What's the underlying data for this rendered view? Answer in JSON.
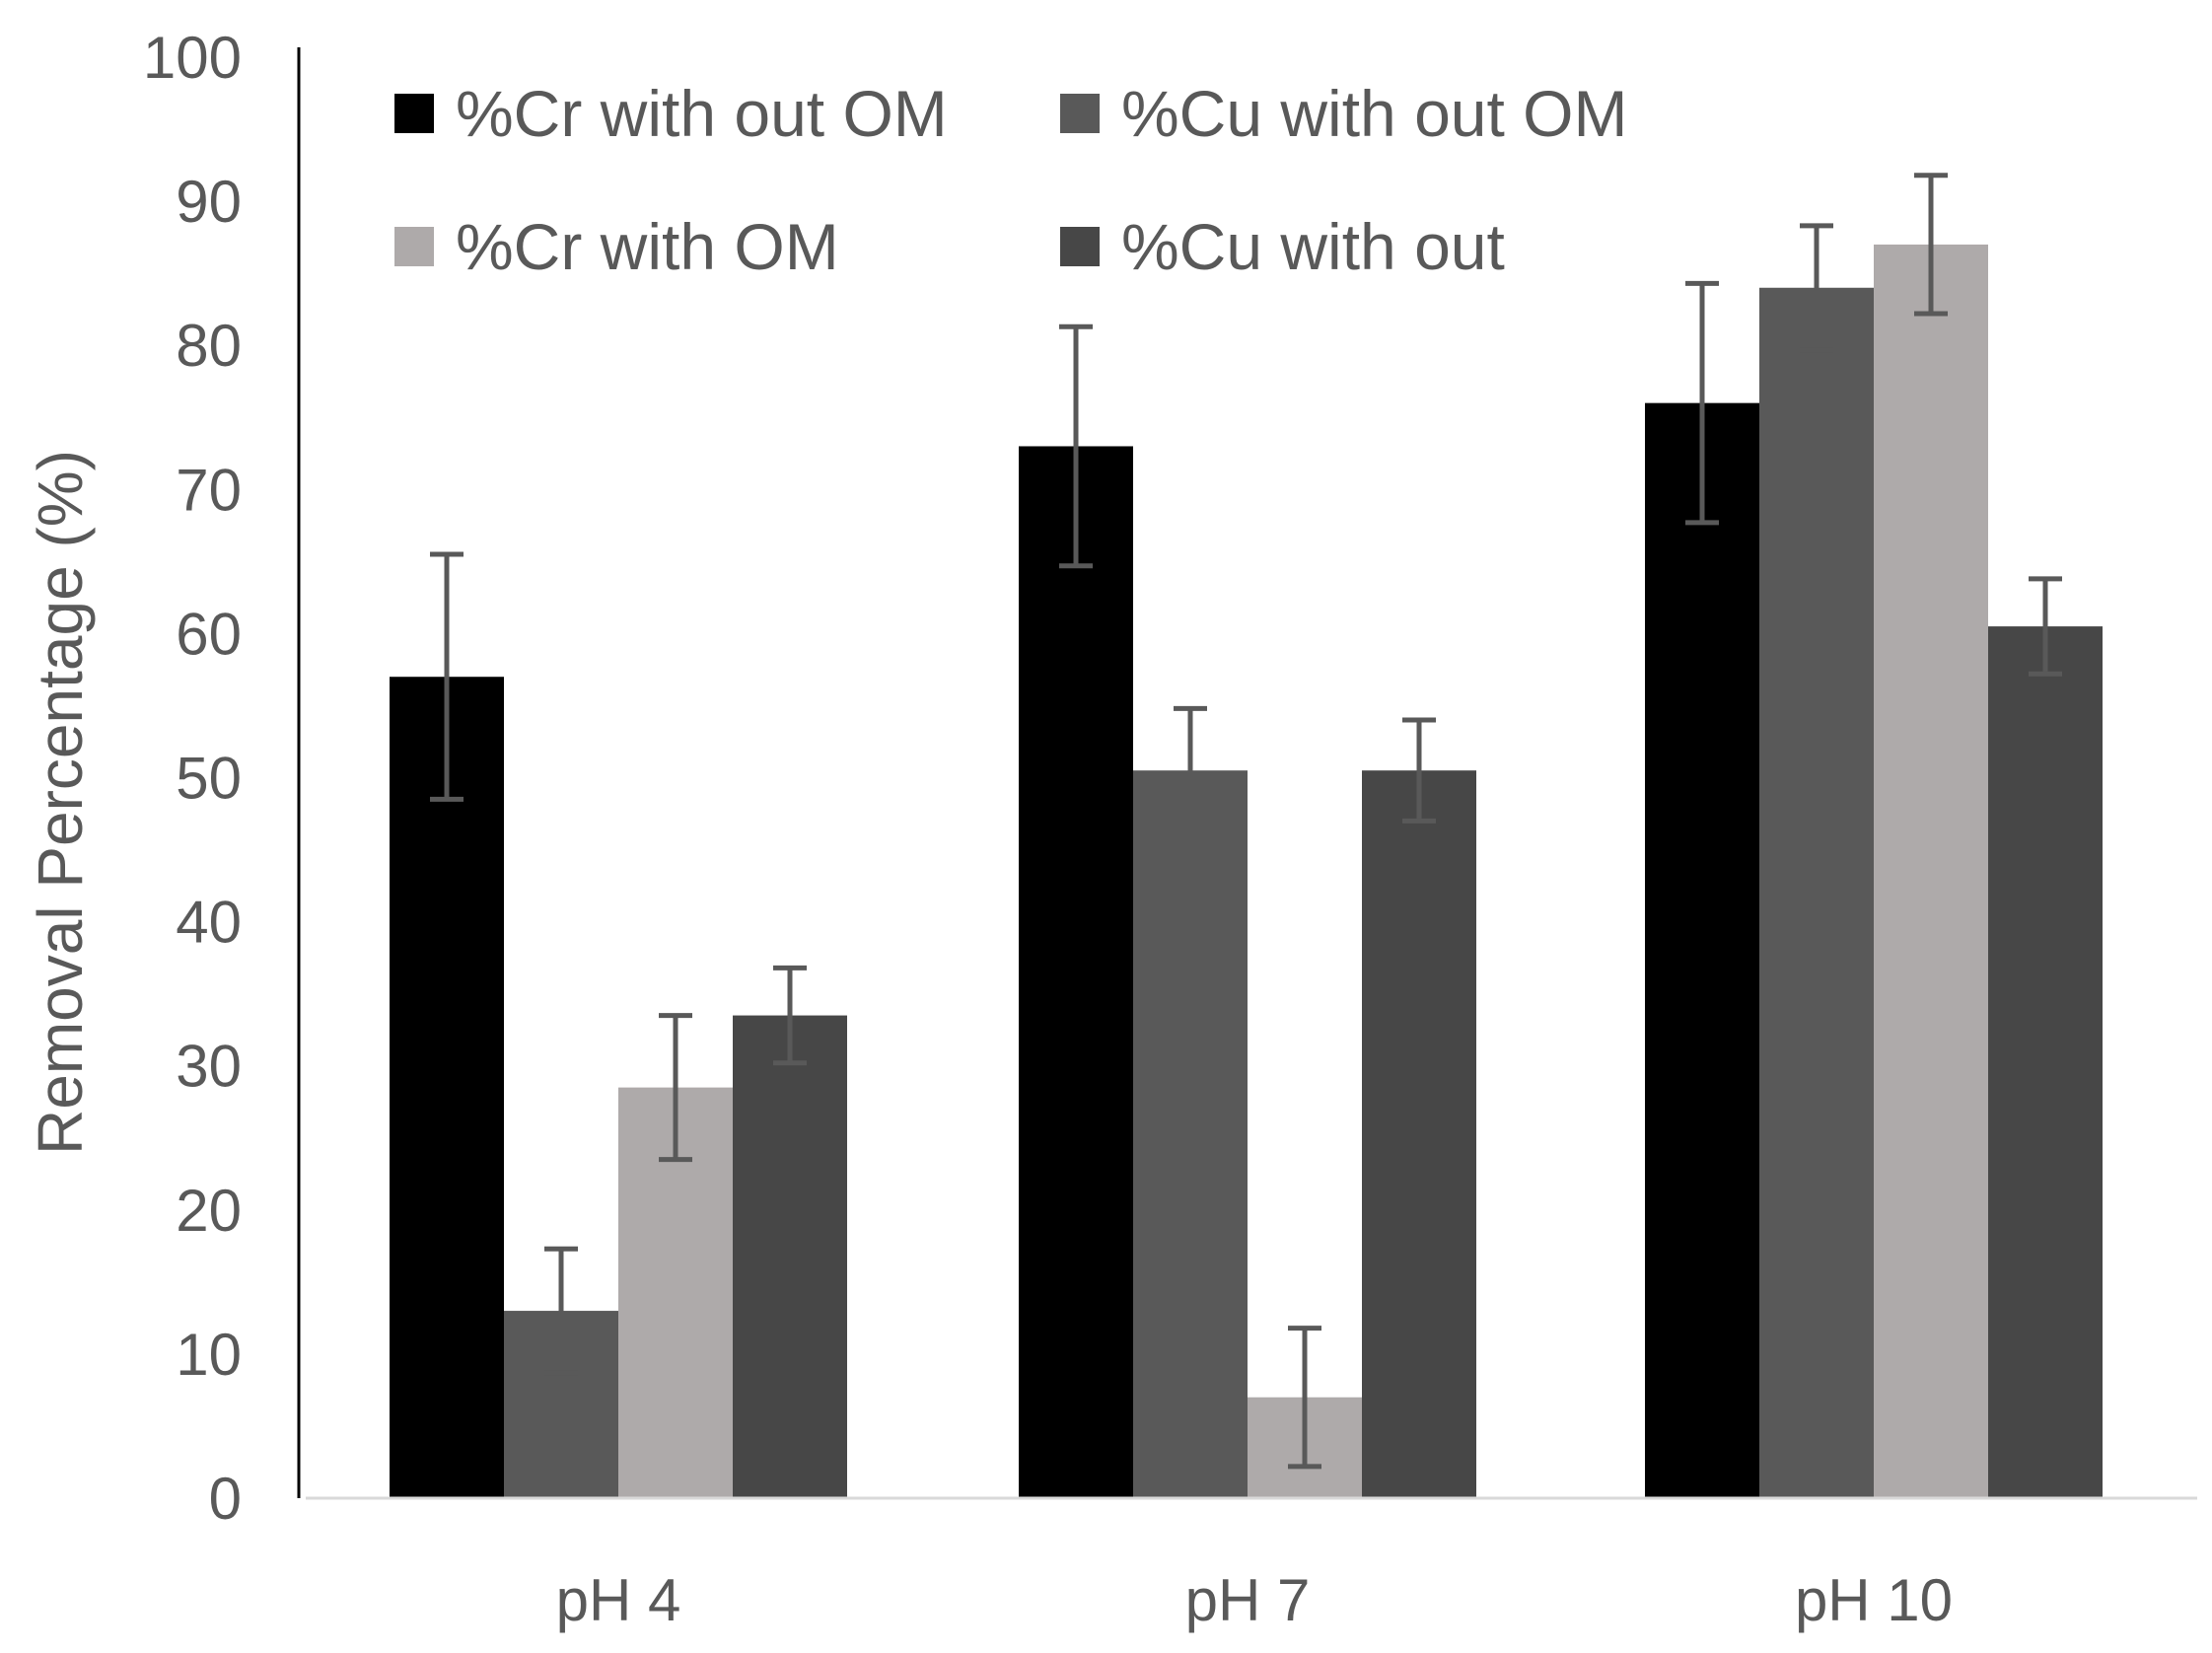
{
  "chart_data": {
    "type": "bar",
    "title": "",
    "xlabel": "",
    "ylabel": "Removal Percentage (%)",
    "ylim": [
      0,
      100
    ],
    "yticks": [
      0,
      10,
      20,
      30,
      40,
      50,
      60,
      70,
      80,
      90,
      100
    ],
    "categories": [
      "pH 4",
      "pH 7",
      "pH 10"
    ],
    "legend_position": "top",
    "series": [
      {
        "name": "%Cr with out OM",
        "color": "#000000",
        "values": [
          57,
          73,
          76
        ],
        "errors": [
          8.5,
          8.3,
          8.3
        ]
      },
      {
        "name": "%Cu with out OM",
        "color": "#595959",
        "values": [
          13,
          50.5,
          84
        ],
        "errors": [
          4.3,
          4.3,
          4.3
        ]
      },
      {
        "name": "%Cr with OM",
        "color": "#aeaaaa",
        "values": [
          28.5,
          7,
          87
        ],
        "errors": [
          5,
          4.8,
          4.8
        ]
      },
      {
        "name": "%Cu with out",
        "color": "#474747",
        "values": [
          33.5,
          50.5,
          60.5
        ],
        "errors": [
          3.3,
          3.5,
          3.3
        ]
      }
    ],
    "colors": {
      "axis": "#000000",
      "baseline": "#d9d9d9",
      "errorbar": "#595959"
    }
  }
}
